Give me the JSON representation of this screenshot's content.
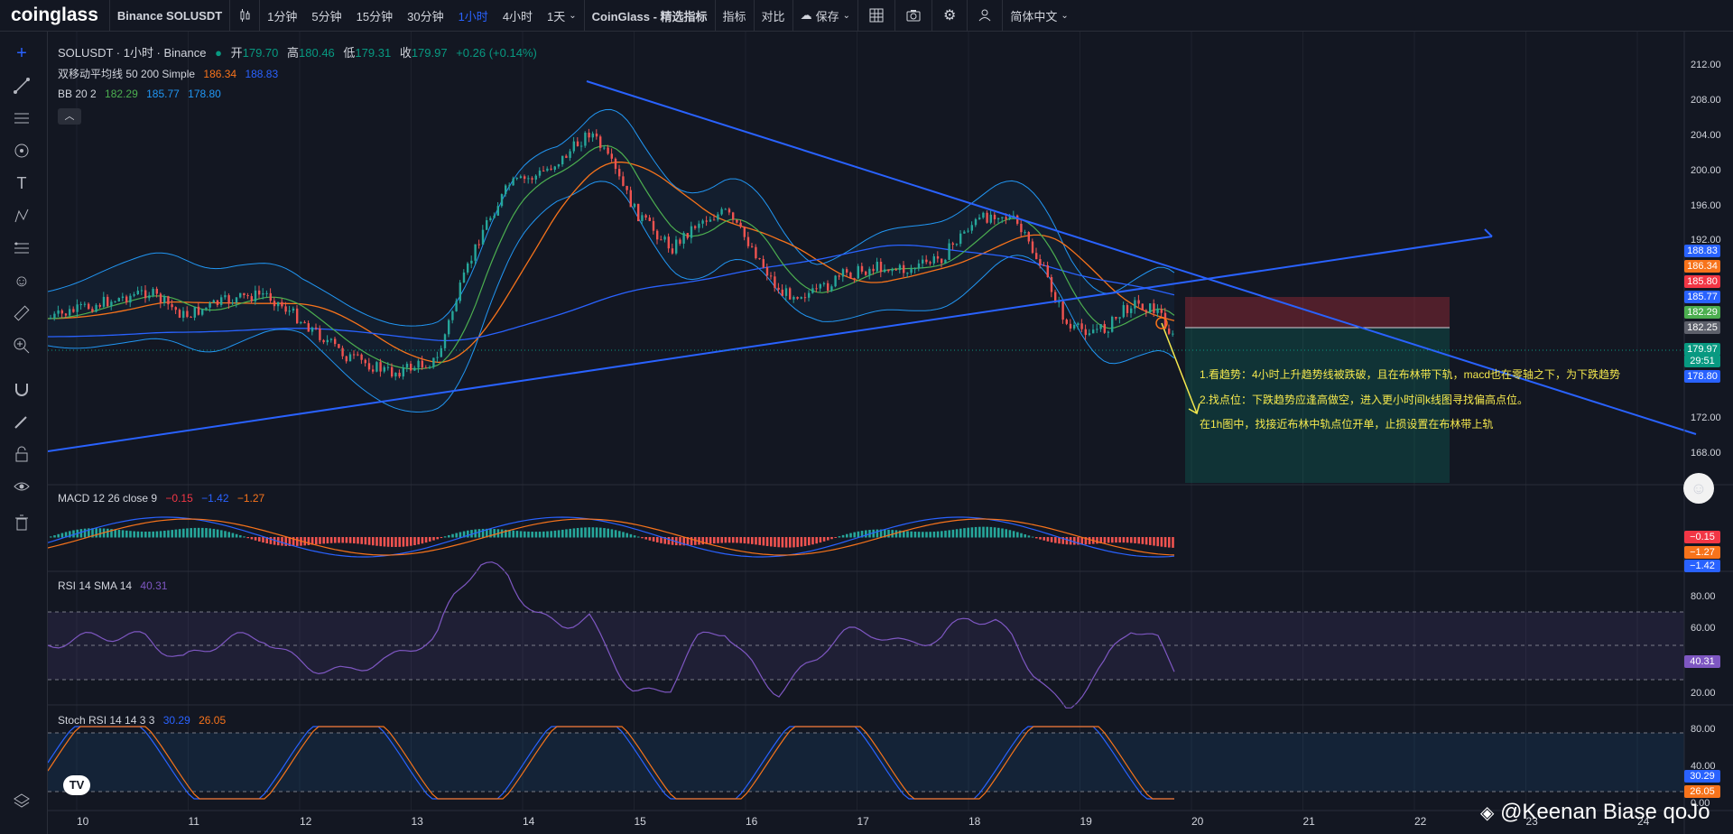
{
  "app": {
    "logo": "coinglass",
    "symbol_title": "Binance SOLUSDT"
  },
  "toolbar": {
    "intervals": [
      "1分钟",
      "5分钟",
      "15分钟",
      "30分钟",
      "1小时",
      "4小时",
      "1天"
    ],
    "active_interval": "1小时",
    "indicator_brand": "CoinGlass - 精选指标",
    "indicators_label": "指标",
    "compare_label": "对比",
    "save_label": "保存",
    "language_label": "简体中文"
  },
  "legend": {
    "title": "SOLUSDT · 1小时 · Binance",
    "ohlc": {
      "o_label": "开",
      "o": "179.70",
      "h_label": "高",
      "h": "180.46",
      "l_label": "低",
      "l": "179.31",
      "c_label": "收",
      "c": "179.97",
      "change": "+0.26 (+0.14%)"
    },
    "ma": {
      "label": "双移动平均线 50 200 Simple",
      "v1": "186.34",
      "v2": "188.83"
    },
    "bb": {
      "label": "BB 20 2",
      "v1": "182.29",
      "v2": "185.77",
      "v3": "178.80"
    }
  },
  "macd": {
    "label": "MACD 12 26 close 9",
    "v1": "−0.15",
    "v2": "−1.42",
    "v3": "−1.27"
  },
  "rsi": {
    "label": "RSI 14 SMA 14",
    "v1": "40.31"
  },
  "stoch": {
    "label": "Stoch RSI 14 14 3 3",
    "v1": "30.29",
    "v2": "26.05"
  },
  "price_axis": [
    "212.00",
    "208.00",
    "204.00",
    "200.00",
    "196.00",
    "192.00",
    "172.00",
    "168.00"
  ],
  "rsi_axis": [
    "80.00",
    "60.00",
    "20.00"
  ],
  "stoch_axis": [
    "80.00",
    "40.00",
    "0.00"
  ],
  "time_axis": [
    "10",
    "11",
    "12",
    "13",
    "14",
    "15",
    "16",
    "17",
    "18",
    "19",
    "20",
    "21",
    "22",
    "23",
    "24"
  ],
  "price_tags": [
    {
      "v": "188.83",
      "color": "#2962ff"
    },
    {
      "v": "186.34",
      "color": "#f7731b"
    },
    {
      "v": "185.80",
      "color": "#f23645"
    },
    {
      "v": "185.77",
      "color": "#2962ff"
    },
    {
      "v": "182.29",
      "color": "#4caf50"
    },
    {
      "v": "182.25",
      "color": "#5d606b"
    },
    {
      "v": "179.97",
      "color": "#089981"
    },
    {
      "v": "29:51",
      "color": "#089981"
    },
    {
      "v": "178.80",
      "color": "#2962ff"
    }
  ],
  "macd_tags": [
    {
      "v": "−0.15",
      "color": "#f23645"
    },
    {
      "v": "−1.27",
      "color": "#f7731b"
    },
    {
      "v": "−1.42",
      "color": "#2962ff"
    }
  ],
  "rsi_tag": {
    "v": "40.31",
    "color": "#7e57c2"
  },
  "stoch_tags": [
    {
      "v": "30.29",
      "color": "#2962ff"
    },
    {
      "v": "26.05",
      "color": "#f7731b"
    }
  ],
  "notes": [
    "1.看趋势：4小时上升趋势线被跌破，且在布林带下轨，macd也在零轴之下，为下跌趋势",
    "2.找点位：下跌趋势应逢高做空，进入更小时间k线图寻找偏高点位。",
    "在1h图中，找接近布林中轨点位开单，止损设置在布林带上轨"
  ],
  "watermark": "@Keenan Biase qoJo",
  "colors": {
    "bg": "#131722",
    "up": "#26a69a",
    "down": "#ef5350",
    "trend": "#2962ff",
    "accent": "#2962ff"
  }
}
